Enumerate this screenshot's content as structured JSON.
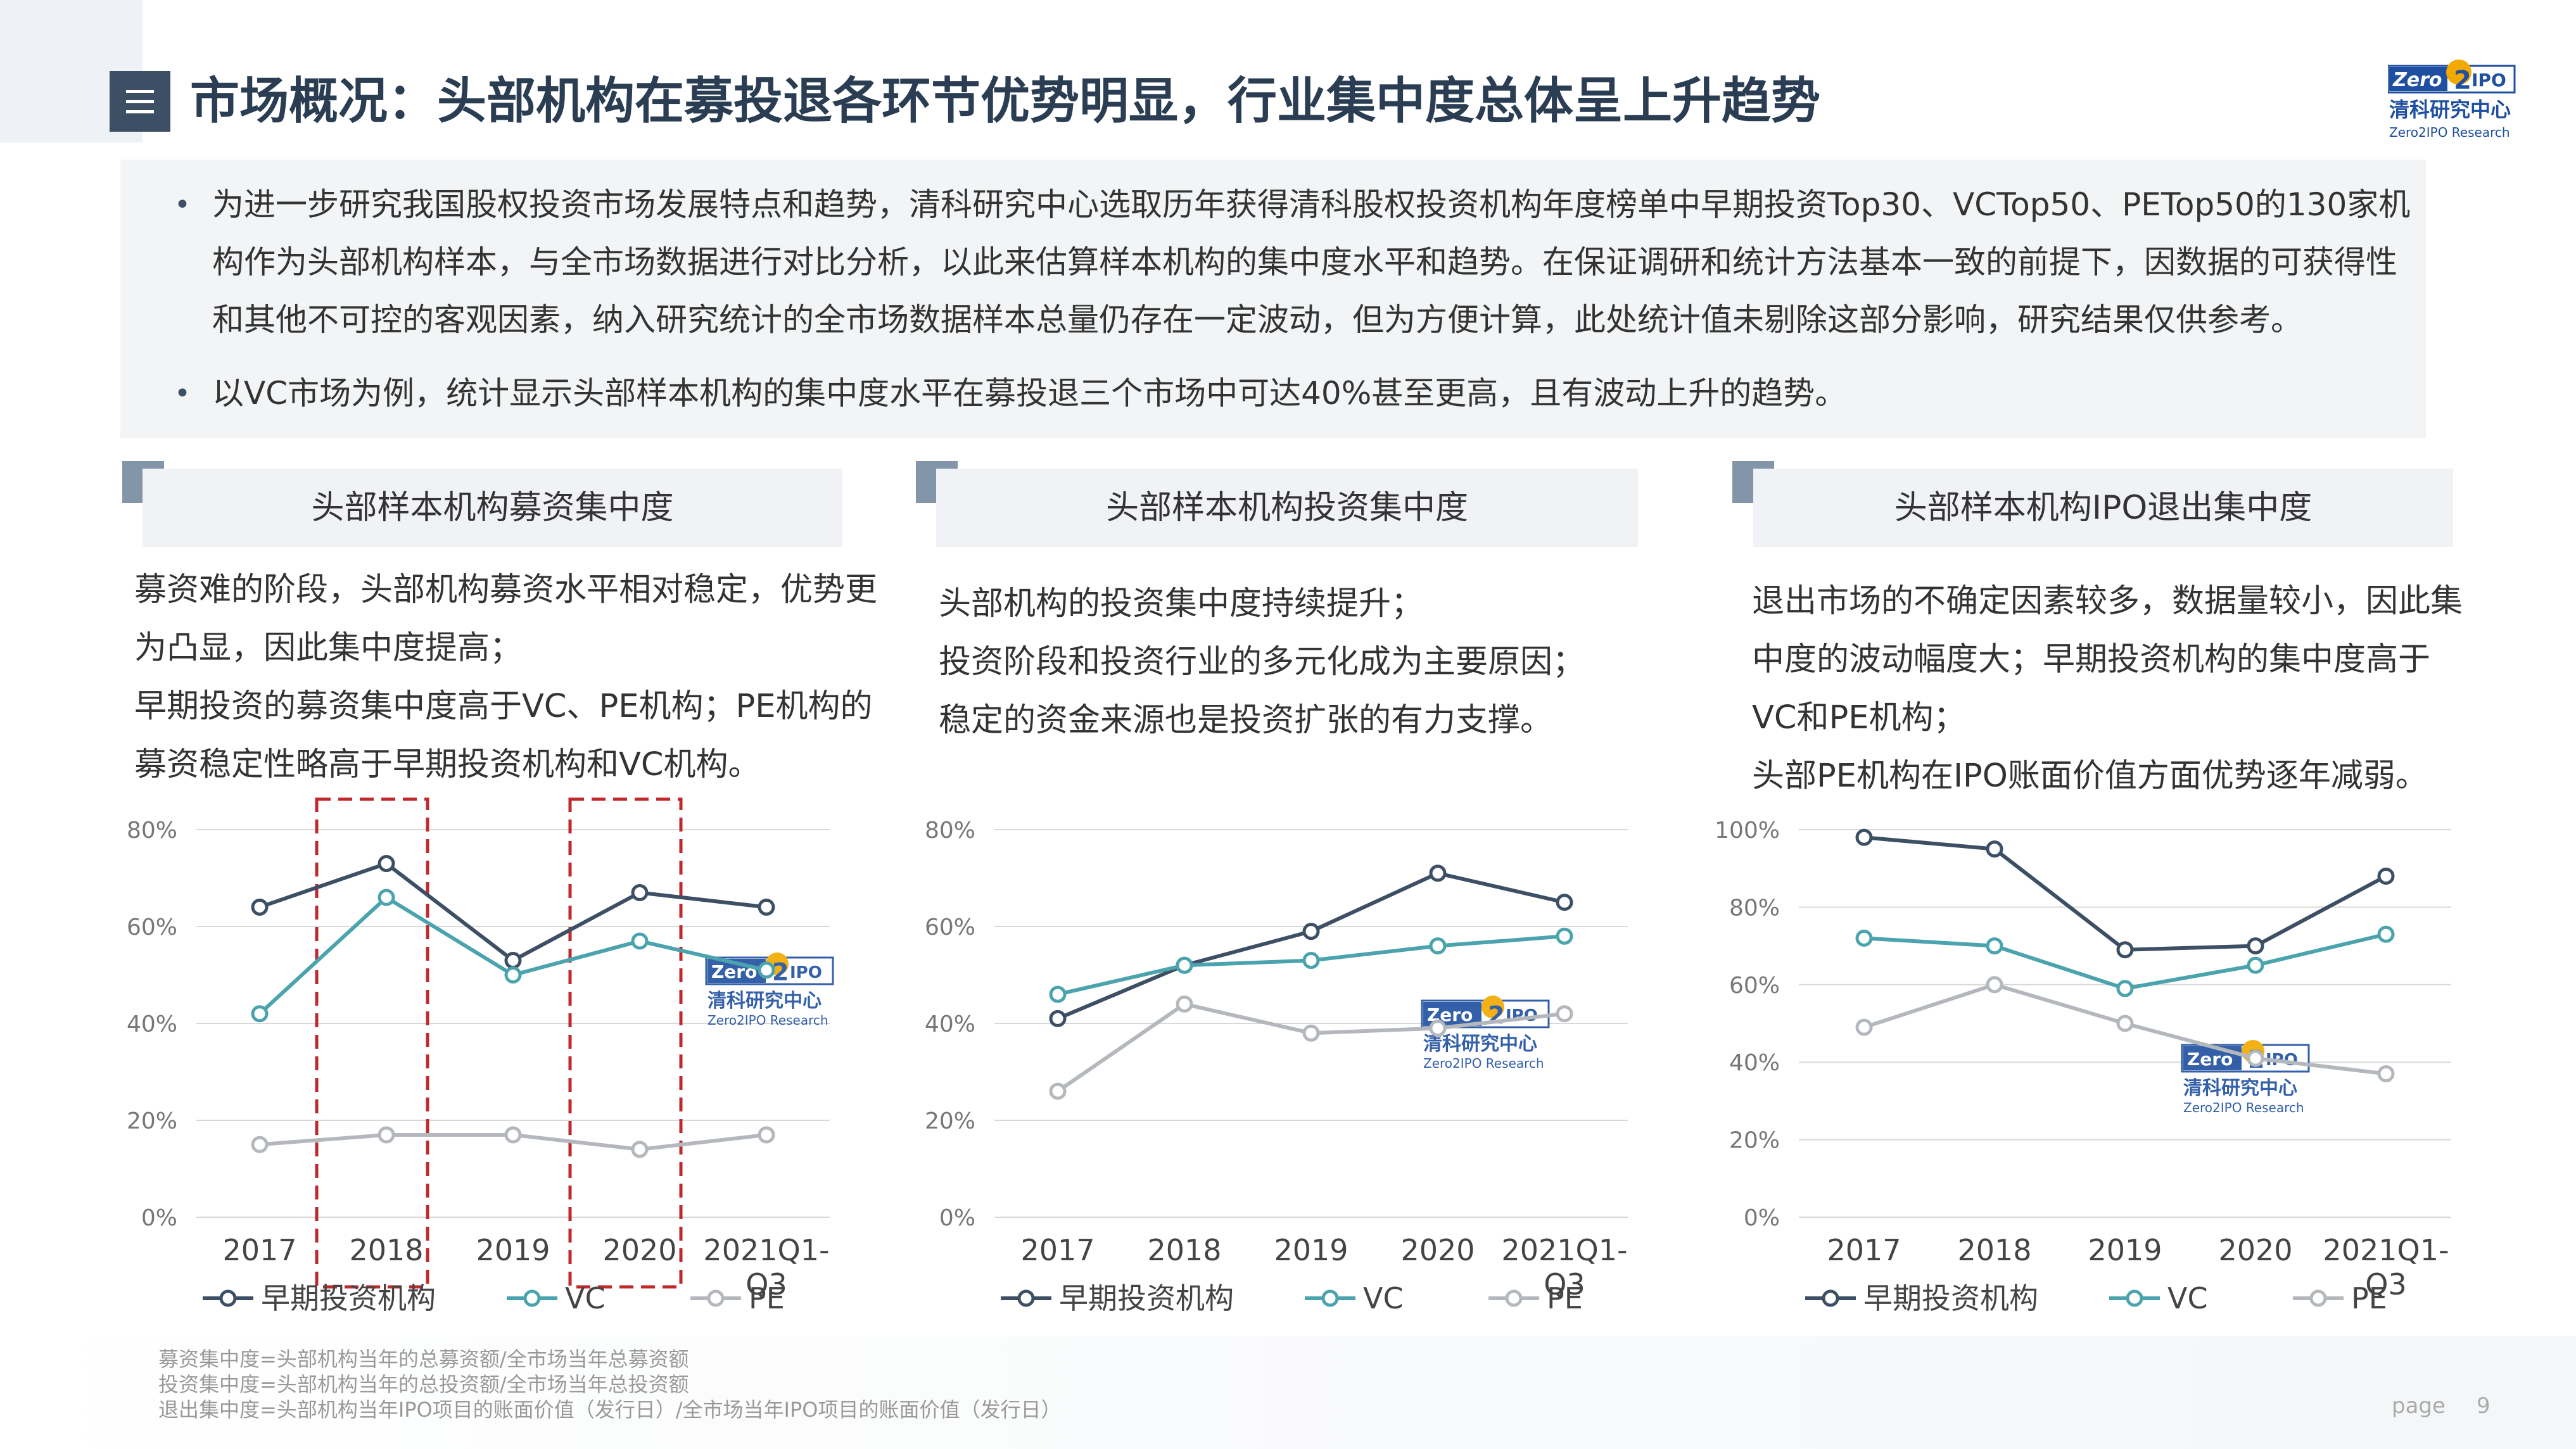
{
  "header": {
    "title": "市场概况：头部机构在募投退各环节优势明显，行业集中度总体呈上升趋势",
    "logo": {
      "brand_word": "Zero",
      "brand_num": "2",
      "brand_tail": "IPO",
      "name": "清科研究中心",
      "name_en": "Zero2IPO Research"
    }
  },
  "intro": {
    "bullets": [
      {
        "lines": [
          "为进一步研究我国股权投资市场发展特点和趋势，清科研究中心选取历年获得清科股权投资机构年度榜单中早期投资Top30、VCTop50、PETop50的130家机",
          "构作为头部机构样本，与全市场数据进行对比分析，以此来估算样本机构的集中度水平和趋势。在保证调研和统计方法基本一致的前提下，因数据的可获得性",
          "和其他不可控的客观因素，纳入研究统计的全市场数据样本总量仍存在一定波动，但为方便计算，此处统计值未剔除这部分影响，研究结果仅供参考。"
        ]
      },
      {
        "lines": [
          "以VC市场为例，统计显示头部样本机构的集中度水平在募投退三个市场中可达40%甚至更高，且有波动上升的趋势。"
        ]
      }
    ]
  },
  "sections": [
    {
      "title": "头部样本机构募资集中度",
      "desc": [
        "募资难的阶段，头部机构募资水平相对稳定，优势更",
        "为凸显，因此集中度提高；",
        "早期投资的募资集中度高于VC、PE机构；PE机构的",
        "募资稳定性略高于早期投资机构和VC机构。"
      ]
    },
    {
      "title": "头部样本机构投资集中度",
      "desc": [
        "头部机构的投资集中度持续提升；",
        "投资阶段和投资行业的多元化成为主要原因；",
        "稳定的资金来源也是投资扩张的有力支撑。"
      ]
    },
    {
      "title": "头部样本机构IPO退出集中度",
      "desc": [
        "退出市场的不确定因素较多，数据量较小，因此集",
        "中度的波动幅度大；早期投资机构的集中度高于",
        "VC和PE机构；",
        "头部PE机构在IPO账面价值方面优势逐年减弱。"
      ]
    }
  ],
  "chart_data": [
    {
      "type": "line",
      "categories": [
        "2017",
        "2018",
        "2019",
        "2020",
        "2021Q1-Q3"
      ],
      "series": [
        {
          "name": "早期投资机构",
          "values": [
            64,
            73,
            53,
            67,
            64
          ],
          "color": "#3d4f64"
        },
        {
          "name": "VC",
          "values": [
            42,
            66,
            50,
            57,
            51
          ],
          "color": "#4aa3ad"
        },
        {
          "name": "PE",
          "values": [
            15,
            17,
            17,
            14,
            17
          ],
          "color": "#b4b8bd"
        }
      ],
      "ylim": [
        0,
        80
      ],
      "yticks": [
        "0%",
        "20%",
        "40%",
        "60%",
        "80%"
      ],
      "highlight_categories": [
        "2018",
        "2020"
      ],
      "grid": true,
      "legend": "bottom"
    },
    {
      "type": "line",
      "categories": [
        "2017",
        "2018",
        "2019",
        "2020",
        "2021Q1-Q3"
      ],
      "series": [
        {
          "name": "早期投资机构",
          "values": [
            41,
            52,
            59,
            71,
            65
          ],
          "color": "#3d4f64"
        },
        {
          "name": "VC",
          "values": [
            46,
            52,
            53,
            56,
            58
          ],
          "color": "#4aa3ad"
        },
        {
          "name": "PE",
          "values": [
            26,
            44,
            38,
            39,
            42
          ],
          "color": "#b4b8bd"
        }
      ],
      "ylim": [
        0,
        80
      ],
      "yticks": [
        "0%",
        "20%",
        "40%",
        "60%",
        "80%"
      ],
      "grid": true,
      "legend": "bottom"
    },
    {
      "type": "line",
      "categories": [
        "2017",
        "2018",
        "2019",
        "2020",
        "2021Q1-Q3"
      ],
      "series": [
        {
          "name": "早期投资机构",
          "values": [
            98,
            95,
            69,
            70,
            88
          ],
          "color": "#3d4f64"
        },
        {
          "name": "VC",
          "values": [
            72,
            70,
            59,
            65,
            73
          ],
          "color": "#4aa3ad"
        },
        {
          "name": "PE",
          "values": [
            49,
            60,
            50,
            41,
            37
          ],
          "color": "#b4b8bd"
        }
      ],
      "ylim": [
        0,
        100
      ],
      "yticks": [
        "0%",
        "20%",
        "40%",
        "60%",
        "80%",
        "100%"
      ],
      "grid": true,
      "legend": "bottom"
    }
  ],
  "footnotes": [
    "募资集中度=头部机构当年的总募资额/全市场当年总募资额",
    "投资集中度=头部机构当年的总投资额/全市场当年总投资额",
    "退出集中度=头部机构当年IPO项目的账面价值（发行日）/全市场当年IPO项目的账面价值（发行日）"
  ],
  "page": {
    "label": "page",
    "number": "9"
  }
}
